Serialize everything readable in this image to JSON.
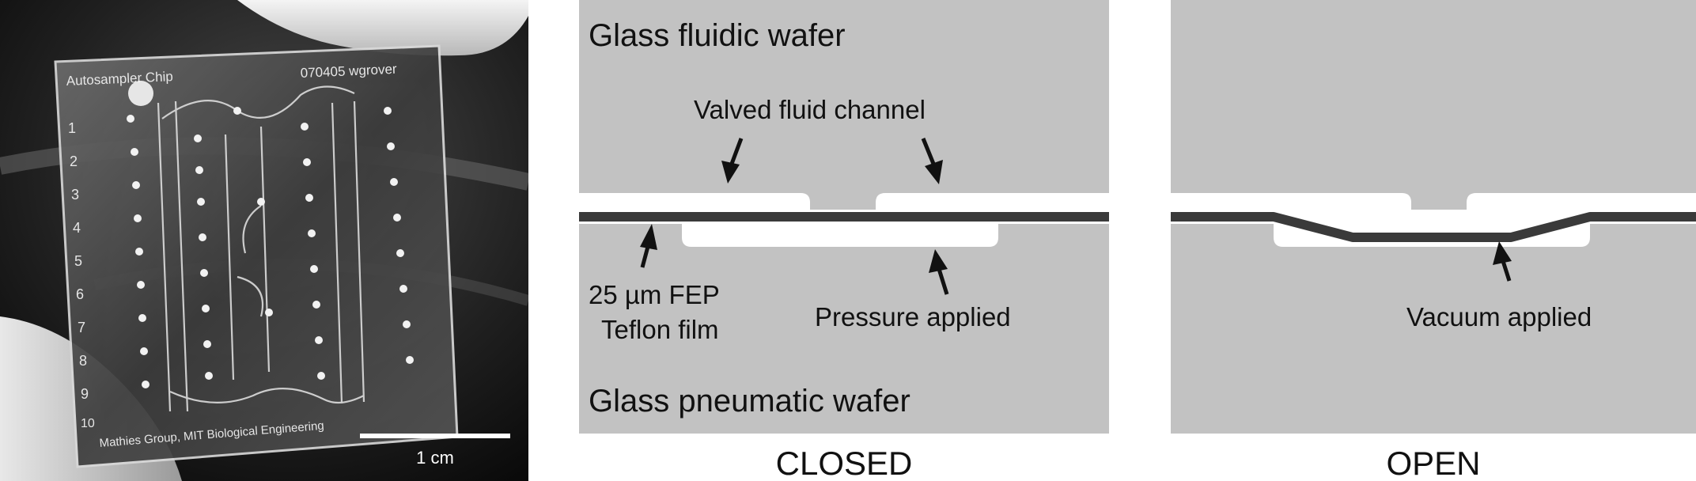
{
  "photo": {
    "chip_title": "Autosampler Chip",
    "chip_code": "070405 wgrover",
    "row_numbers": [
      "1",
      "2",
      "3",
      "4",
      "5",
      "6",
      "7",
      "8",
      "9",
      "10"
    ],
    "credit": "Mathies Group, MIT Biological Engineering",
    "scale_label": "1 cm"
  },
  "closed": {
    "fluidic_wafer_label": "Glass fluidic wafer",
    "channel_label": "Valved fluid channel",
    "film_label_line1": "25 µm FEP",
    "film_label_line2": "Teflon film",
    "pressure_label": "Pressure applied",
    "pneumatic_wafer_label": "Glass pneumatic wafer",
    "state_label": "CLOSED"
  },
  "open": {
    "vacuum_label": "Vacuum applied",
    "state_label": "OPEN"
  },
  "colors": {
    "wafer": "#c2c2c2",
    "membrane": "#3a3a3a",
    "channel": "#ffffff",
    "text": "#111111"
  }
}
